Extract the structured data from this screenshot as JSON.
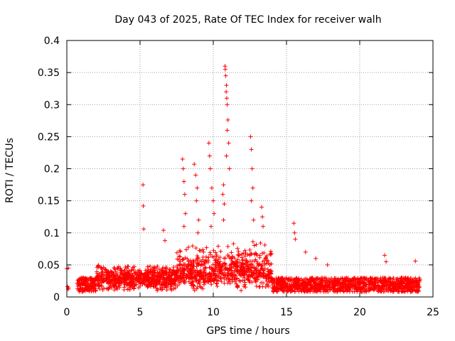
{
  "chart_data": {
    "type": "scatter",
    "title": "Day 043 of 2025, Rate Of TEC Index for receiver walh",
    "xlabel": "GPS time / hours",
    "ylabel": "ROTI / TECUs",
    "xlim": [
      0,
      25
    ],
    "ylim": [
      0,
      0.4
    ],
    "xticks": [
      0,
      5,
      10,
      15,
      20,
      25
    ],
    "xtick_labels": [
      "0",
      "5",
      "10",
      "15",
      "20",
      "25"
    ],
    "yticks": [
      0,
      0.05,
      0.1,
      0.15,
      0.2,
      0.25,
      0.3,
      0.35,
      0.4
    ],
    "ytick_labels": [
      "0",
      "0.05",
      "0.1",
      "0.15",
      "0.2",
      "0.25",
      "0.3",
      "0.35",
      "0.4"
    ],
    "grid": true,
    "marker": "+",
    "series": [
      {
        "name": "ROTI",
        "color": "#ff0000",
        "points": [
          [
            0.0,
            0.044
          ],
          [
            0.05,
            0.016
          ],
          [
            0.08,
            0.012
          ],
          [
            0.1,
            0.045
          ],
          [
            0.12,
            0.014
          ],
          [
            5.2,
            0.175
          ],
          [
            5.22,
            0.142
          ],
          [
            5.25,
            0.106
          ],
          [
            6.6,
            0.104
          ],
          [
            6.7,
            0.088
          ],
          [
            7.9,
            0.215
          ],
          [
            7.95,
            0.2
          ],
          [
            8.0,
            0.18
          ],
          [
            8.05,
            0.16
          ],
          [
            8.1,
            0.13
          ],
          [
            8.0,
            0.11
          ],
          [
            8.7,
            0.207
          ],
          [
            8.8,
            0.19
          ],
          [
            8.9,
            0.17
          ],
          [
            8.85,
            0.15
          ],
          [
            9.0,
            0.12
          ],
          [
            8.95,
            0.1
          ],
          [
            9.7,
            0.24
          ],
          [
            9.75,
            0.22
          ],
          [
            9.8,
            0.2
          ],
          [
            9.9,
            0.17
          ],
          [
            10.0,
            0.15
          ],
          [
            10.05,
            0.13
          ],
          [
            9.85,
            0.11
          ],
          [
            10.7,
            0.175
          ],
          [
            10.65,
            0.16
          ],
          [
            10.75,
            0.145
          ],
          [
            10.7,
            0.12
          ],
          [
            10.8,
            0.36
          ],
          [
            10.82,
            0.355
          ],
          [
            10.85,
            0.345
          ],
          [
            10.9,
            0.33
          ],
          [
            10.88,
            0.32
          ],
          [
            10.92,
            0.31
          ],
          [
            10.95,
            0.3
          ],
          [
            11.0,
            0.276
          ],
          [
            10.95,
            0.26
          ],
          [
            11.05,
            0.24
          ],
          [
            10.9,
            0.22
          ],
          [
            11.1,
            0.2
          ],
          [
            12.55,
            0.25
          ],
          [
            12.6,
            0.23
          ],
          [
            12.65,
            0.2
          ],
          [
            12.7,
            0.17
          ],
          [
            12.6,
            0.15
          ],
          [
            12.75,
            0.12
          ],
          [
            13.3,
            0.14
          ],
          [
            13.35,
            0.125
          ],
          [
            13.4,
            0.11
          ],
          [
            15.5,
            0.115
          ],
          [
            15.55,
            0.1
          ],
          [
            15.6,
            0.09
          ],
          [
            16.3,
            0.07
          ],
          [
            17.0,
            0.06
          ],
          [
            17.8,
            0.05
          ],
          [
            21.7,
            0.065
          ],
          [
            21.8,
            0.055
          ],
          [
            23.8,
            0.056
          ]
        ]
      }
    ]
  }
}
